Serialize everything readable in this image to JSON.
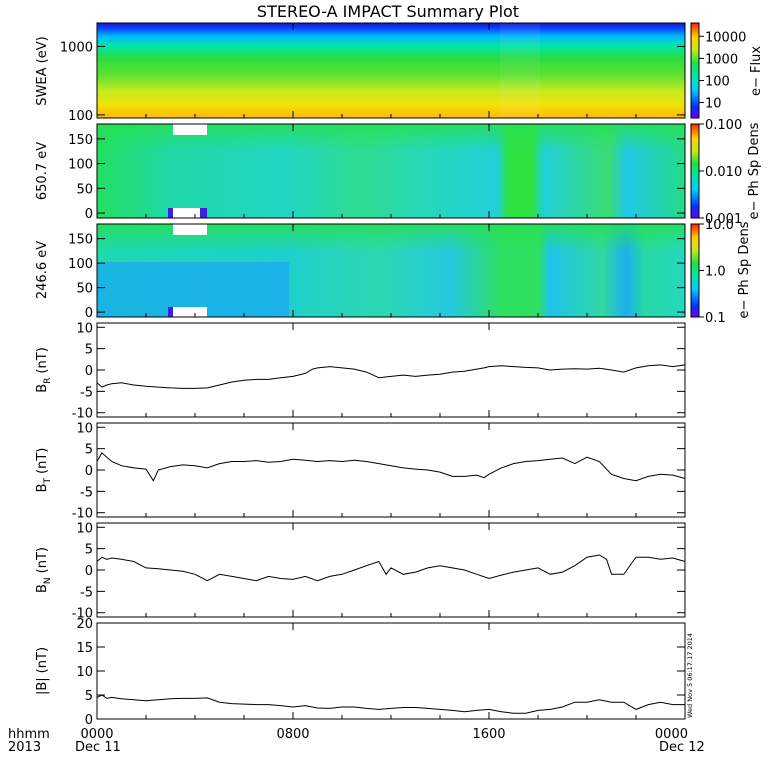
{
  "title": "STEREO-A IMPACT Summary Plot",
  "timestamp": "Wed Nov 5 06:17:17 2014",
  "x_axis": {
    "ticks": [
      "0000",
      "0800",
      "1600",
      "0000"
    ],
    "tick_hours": [
      0,
      8,
      16,
      24
    ],
    "start_date": "Dec 11",
    "end_date": "Dec 12",
    "corner_top": "hhmm",
    "corner_bottom": "2013",
    "range_hours": [
      0,
      24
    ]
  },
  "chart_data": [
    {
      "type": "heatmap",
      "ylabel": "SWEA (eV)",
      "yscale": "log",
      "ylim": [
        90,
        2200
      ],
      "yticks": [
        {
          "v": 100,
          "l": "100"
        },
        {
          "v": 1000,
          "l": "1000"
        }
      ],
      "colorbar": {
        "label": "e− Flux",
        "scale": "log",
        "range": [
          2,
          40000
        ],
        "ticks": [
          {
            "v": 10,
            "l": "10"
          },
          {
            "v": 100,
            "l": "100"
          },
          {
            "v": 1000,
            "l": "1000"
          },
          {
            "v": 10000,
            "l": "10000"
          }
        ]
      }
    },
    {
      "type": "heatmap",
      "ylabel": "650.7 eV",
      "ylim": [
        -10,
        180
      ],
      "yticks": [
        {
          "v": 0,
          "l": "0"
        },
        {
          "v": 50,
          "l": "50"
        },
        {
          "v": 100,
          "l": "100"
        },
        {
          "v": 150,
          "l": "150"
        }
      ],
      "colorbar": {
        "label": "e− Ph Sp Dens",
        "scale": "log",
        "range": [
          0.001,
          0.1
        ],
        "ticks": [
          {
            "v": 0.001,
            "l": "0.001"
          },
          {
            "v": 0.01,
            "l": "0.010"
          },
          {
            "v": 0.1,
            "l": "0.100"
          }
        ]
      }
    },
    {
      "type": "heatmap",
      "ylabel": "246.6 eV",
      "ylim": [
        -10,
        180
      ],
      "yticks": [
        {
          "v": 0,
          "l": "0"
        },
        {
          "v": 50,
          "l": "50"
        },
        {
          "v": 100,
          "l": "100"
        },
        {
          "v": 150,
          "l": "150"
        }
      ],
      "colorbar": {
        "label": "e− Ph Sp Dens",
        "scale": "log",
        "range": [
          0.1,
          10
        ],
        "ticks": [
          {
            "v": 0.1,
            "l": "0.1"
          },
          {
            "v": 1,
            "l": "1.0"
          },
          {
            "v": 10,
            "l": "10.0"
          }
        ]
      }
    },
    {
      "type": "line",
      "ylabel": "B",
      "ylabel_sub": "R",
      "ylabel_unit": "(nT)",
      "ylim": [
        -11,
        11
      ],
      "yticks": [
        -10,
        -5,
        0,
        5,
        10
      ],
      "x": [
        0,
        0.2,
        0.4,
        0.6,
        1,
        1.5,
        2,
        2.5,
        3,
        3.5,
        4,
        4.5,
        5,
        5.5,
        6,
        6.5,
        7,
        7.5,
        8,
        8.5,
        8.8,
        9,
        9.5,
        10,
        10.5,
        11,
        11.2,
        11.5,
        12,
        12.5,
        13,
        13.5,
        14,
        14.5,
        15,
        15.5,
        15.8,
        16,
        16.5,
        17,
        17.5,
        18,
        18.5,
        19,
        19.5,
        20,
        20.5,
        21,
        21.5,
        22,
        22.5,
        23,
        23.5,
        24
      ],
      "y": [
        -3,
        -4,
        -3.5,
        -3.2,
        -3,
        -3.5,
        -3.8,
        -4,
        -4.2,
        -4.3,
        -4.3,
        -4.2,
        -3.5,
        -2.8,
        -2.4,
        -2.2,
        -2.2,
        -1.8,
        -1.5,
        -0.8,
        0.2,
        0.5,
        0.8,
        0.5,
        0.2,
        -0.5,
        -1,
        -1.8,
        -1.5,
        -1.2,
        -1.5,
        -1.2,
        -1,
        -0.5,
        -0.3,
        0.2,
        0.5,
        0.8,
        1,
        0.8,
        0.6,
        0.5,
        0,
        0.2,
        0.3,
        0.2,
        0.4,
        0,
        -0.5,
        0.5,
        1,
        1.2,
        0.8,
        1.2
      ]
    },
    {
      "type": "line",
      "ylabel": "B",
      "ylabel_sub": "T",
      "ylabel_unit": "(nT)",
      "ylim": [
        -11,
        11
      ],
      "yticks": [
        -10,
        -5,
        0,
        5,
        10
      ],
      "x": [
        0,
        0.2,
        0.4,
        0.6,
        1,
        1.5,
        2,
        2.3,
        2.5,
        3,
        3.5,
        4,
        4.5,
        5,
        5.5,
        6,
        6.5,
        7,
        7.5,
        8,
        8.5,
        9,
        9.5,
        10,
        10.5,
        11,
        11.5,
        12,
        12.5,
        13,
        13.5,
        14,
        14.5,
        15,
        15.5,
        15.8,
        16,
        16.5,
        17,
        17.5,
        18,
        18.5,
        19,
        19.5,
        20,
        20.5,
        21,
        21.5,
        22,
        22.5,
        23,
        23.5,
        24
      ],
      "y": [
        2,
        4,
        3,
        2,
        1,
        0.5,
        0.2,
        -2.5,
        0,
        0.8,
        1.2,
        1,
        0.5,
        1.5,
        2,
        2,
        2.2,
        1.8,
        2,
        2.5,
        2.3,
        2,
        2.2,
        2,
        2.3,
        2,
        1.5,
        1,
        0.5,
        0.2,
        0,
        -0.5,
        -1.5,
        -1.5,
        -1.2,
        -1.8,
        -1,
        0.5,
        1.5,
        2,
        2.2,
        2.5,
        2.8,
        1.5,
        3,
        2,
        -1,
        -2,
        -2.5,
        -1.5,
        -1,
        -1.2,
        -2
      ]
    },
    {
      "type": "line",
      "ylabel": "B",
      "ylabel_sub": "N",
      "ylabel_unit": "(nT)",
      "ylim": [
        -11,
        11
      ],
      "yticks": [
        -10,
        -5,
        0,
        5,
        10
      ],
      "x": [
        0,
        0.2,
        0.4,
        0.6,
        1,
        1.5,
        2,
        2.5,
        3,
        3.5,
        4,
        4.5,
        5,
        5.5,
        6,
        6.5,
        7,
        7.5,
        8,
        8.5,
        9,
        9.5,
        10,
        10.5,
        11,
        11.5,
        11.8,
        12,
        12.5,
        13,
        13.5,
        14,
        14.5,
        15,
        15.5,
        16,
        16.5,
        17,
        17.5,
        18,
        18.5,
        19,
        19.5,
        20,
        20.5,
        20.8,
        21,
        21.5,
        22,
        22.5,
        23,
        23.5,
        24
      ],
      "y": [
        2,
        3,
        2.5,
        2.8,
        2.5,
        2,
        0.5,
        0.3,
        0,
        -0.3,
        -1,
        -2.5,
        -1,
        -1.5,
        -2,
        -2.5,
        -1.5,
        -2,
        -2.2,
        -1.5,
        -2.5,
        -1.5,
        -1,
        0,
        1,
        2,
        -1,
        0.5,
        -1,
        -0.5,
        0.5,
        1,
        0.5,
        0,
        -1,
        -2,
        -1.2,
        -0.5,
        0,
        0.5,
        -1,
        -0.5,
        1,
        3,
        3.5,
        2.5,
        -1,
        -1,
        3,
        3,
        2.5,
        2.8,
        2
      ]
    },
    {
      "type": "line",
      "ylabel": "|B|",
      "ylabel_unit": "(nT)",
      "ylim": [
        0,
        20
      ],
      "yticks": [
        0,
        5,
        10,
        15,
        20
      ],
      "x": [
        0,
        0.2,
        0.4,
        0.6,
        1,
        1.5,
        2,
        2.5,
        3,
        3.5,
        4,
        4.5,
        5,
        5.5,
        6,
        6.5,
        7,
        7.5,
        8,
        8.5,
        9,
        9.5,
        10,
        10.5,
        11,
        11.5,
        12,
        12.5,
        13,
        13.5,
        14,
        14.5,
        15,
        15.5,
        16,
        16.5,
        17,
        17.5,
        18,
        18.5,
        19,
        19.5,
        20,
        20.5,
        21,
        21.5,
        22,
        22.5,
        23,
        23.5,
        24
      ],
      "y": [
        4.5,
        5,
        4.3,
        4.5,
        4.2,
        4,
        3.8,
        4,
        4.2,
        4.3,
        4.3,
        4.4,
        3.5,
        3.2,
        3.1,
        3,
        3,
        2.8,
        2.5,
        2.8,
        2.3,
        2.2,
        2.5,
        2.5,
        2.2,
        2,
        2.2,
        2.4,
        2.4,
        2.2,
        2,
        1.8,
        1.5,
        1.8,
        2,
        1.5,
        1.2,
        1.2,
        1.8,
        2,
        2.5,
        3.5,
        3.5,
        4,
        3.5,
        3.5,
        2,
        3,
        3.5,
        3,
        3
      ]
    }
  ]
}
